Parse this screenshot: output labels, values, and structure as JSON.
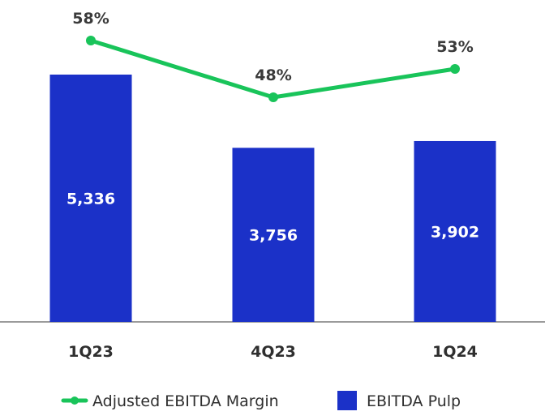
{
  "chart_data": {
    "type": "bar",
    "categories": [
      "1Q23",
      "4Q23",
      "1Q24"
    ],
    "series": [
      {
        "name": "EBITDA Pulp",
        "kind": "bar",
        "values": [
          5336,
          3756,
          3902
        ],
        "labels": [
          "5,336",
          "3,756",
          "3,902"
        ],
        "color": "#1b31c8"
      },
      {
        "name": "Adjusted EBITDA Margin",
        "kind": "line",
        "values": [
          58,
          48,
          53
        ],
        "labels": [
          "58%",
          "48%",
          "53%"
        ],
        "color": "#19c45a"
      }
    ],
    "title": "",
    "xlabel": "",
    "ylabel": "",
    "bar_ylim": [
      0,
      7000
    ],
    "line_ylim": [
      0,
      80
    ],
    "grid": false,
    "legend_position": "bottom"
  }
}
